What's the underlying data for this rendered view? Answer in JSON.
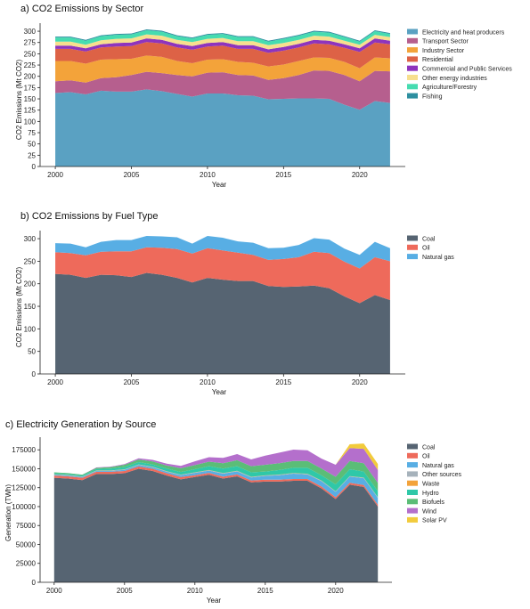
{
  "chart_data": [
    {
      "type": "area",
      "title": "a) CO2 Emissions by Sector",
      "xlabel": "Year",
      "ylabel": "CO2 Emissions (Mt CO2)",
      "xlim": [
        1999,
        2023
      ],
      "ylim": [
        0,
        310
      ],
      "xticks": [
        2000,
        2005,
        2010,
        2015,
        2020
      ],
      "yticks": [
        0,
        25,
        50,
        75,
        100,
        125,
        150,
        175,
        200,
        225,
        250,
        275,
        300
      ],
      "legend_position": "right",
      "x": [
        2000,
        2001,
        2002,
        2003,
        2004,
        2005,
        2006,
        2007,
        2008,
        2009,
        2010,
        2011,
        2012,
        2013,
        2014,
        2015,
        2016,
        2017,
        2018,
        2019,
        2020,
        2021,
        2022
      ],
      "series": [
        {
          "name": "Electricity and heat producers",
          "color": "#5aa1c2",
          "values": [
            163,
            165,
            160,
            168,
            166,
            166,
            171,
            167,
            161,
            155,
            162,
            162,
            158,
            157,
            149,
            150,
            151,
            151,
            150,
            137,
            126,
            145,
            141
          ]
        },
        {
          "name": "Transport Sector",
          "color": "#b65f8e",
          "values": [
            26,
            26,
            26,
            28,
            32,
            37,
            39,
            40,
            42,
            45,
            46,
            47,
            45,
            45,
            43,
            46,
            52,
            62,
            62,
            66,
            63,
            67,
            70
          ]
        },
        {
          "name": "Industry Sector",
          "color": "#f3a33a",
          "values": [
            45,
            43,
            42,
            41,
            40,
            36,
            36,
            36,
            31,
            29,
            29,
            29,
            29,
            28,
            30,
            30,
            31,
            29,
            29,
            29,
            29,
            30,
            29
          ]
        },
        {
          "name": "Residential",
          "color": "#dd6246",
          "values": [
            27,
            27,
            27,
            27,
            28,
            28,
            30,
            30,
            30,
            30,
            29,
            30,
            29,
            31,
            30,
            31,
            30,
            31,
            30,
            31,
            36,
            33,
            31
          ]
        },
        {
          "name": "Commercial and Public Services",
          "color": "#8e34bd",
          "values": [
            7,
            7,
            7,
            7,
            8,
            8,
            8,
            8,
            8,
            8,
            8,
            8,
            8,
            8,
            8,
            8,
            8,
            8,
            8,
            8,
            8,
            9,
            8
          ]
        },
        {
          "name": "Other energy industries",
          "color": "#f7df8e",
          "values": [
            9,
            9,
            8,
            9,
            9,
            9,
            9,
            9,
            9,
            9,
            9,
            9,
            9,
            9,
            9,
            9,
            9,
            9,
            9,
            8,
            8,
            8,
            8
          ]
        },
        {
          "name": "Agriculture/Forestry",
          "color": "#46dcb0",
          "values": [
            9,
            9,
            9,
            9,
            9,
            9,
            9,
            9,
            8,
            8,
            9,
            9,
            9,
            9,
            8,
            9,
            9,
            9,
            9,
            8,
            7,
            8,
            7
          ]
        },
        {
          "name": "Fishing",
          "color": "#2d8fa0",
          "values": [
            2,
            2,
            2,
            2,
            2,
            2,
            2,
            2,
            2,
            2,
            2,
            2,
            2,
            2,
            2,
            2,
            2,
            2,
            2,
            2,
            2,
            2,
            2
          ]
        }
      ]
    },
    {
      "type": "area",
      "title": "b) CO2 Emissions by Fuel Type",
      "xlabel": "Year",
      "ylabel": "CO2 Emissions (Mt CO2)",
      "xlim": [
        1999,
        2023
      ],
      "ylim": [
        0,
        310
      ],
      "xticks": [
        2000,
        2005,
        2010,
        2015,
        2020
      ],
      "yticks": [
        0,
        50,
        100,
        150,
        200,
        250,
        300
      ],
      "legend_position": "right",
      "x": [
        2000,
        2001,
        2002,
        2003,
        2004,
        2005,
        2006,
        2007,
        2008,
        2009,
        2010,
        2011,
        2012,
        2013,
        2014,
        2015,
        2016,
        2017,
        2018,
        2019,
        2020,
        2021,
        2022
      ],
      "series": [
        {
          "name": "Coal",
          "color": "#566472",
          "values": [
            222,
            220,
            213,
            220,
            219,
            215,
            224,
            220,
            213,
            203,
            213,
            209,
            206,
            206,
            195,
            193,
            194,
            196,
            190,
            172,
            157,
            175,
            164
          ]
        },
        {
          "name": "Oil",
          "color": "#ee6a5b",
          "values": [
            48,
            48,
            50,
            51,
            53,
            57,
            57,
            60,
            64,
            64,
            66,
            65,
            63,
            58,
            58,
            62,
            65,
            75,
            78,
            77,
            77,
            84,
            86
          ]
        },
        {
          "name": "Natural gas",
          "color": "#58aee4",
          "values": [
            20,
            21,
            18,
            22,
            25,
            25,
            25,
            25,
            26,
            22,
            27,
            28,
            25,
            27,
            26,
            25,
            27,
            30,
            30,
            29,
            30,
            34,
            29
          ]
        }
      ]
    },
    {
      "type": "area",
      "title": "c) Electricity Generation by Source",
      "xlabel": "Year",
      "ylabel": "Generation (TWh)",
      "xlim": [
        1999,
        2024
      ],
      "ylim": [
        0,
        187000
      ],
      "xticks": [
        2000,
        2005,
        2010,
        2015,
        2020
      ],
      "yticks": [
        0,
        25000,
        50000,
        75000,
        100000,
        125000,
        150000,
        175000
      ],
      "legend_position": "right",
      "x": [
        2000,
        2001,
        2002,
        2003,
        2004,
        2005,
        2006,
        2007,
        2008,
        2009,
        2010,
        2011,
        2012,
        2013,
        2014,
        2015,
        2016,
        2017,
        2018,
        2019,
        2020,
        2021,
        2022,
        2023
      ],
      "series": [
        {
          "name": "Coal",
          "color": "#566472",
          "values": [
            138000,
            137000,
            135000,
            143000,
            143000,
            144000,
            150000,
            147000,
            141000,
            136000,
            139000,
            142000,
            137000,
            140000,
            132000,
            133000,
            133000,
            134000,
            134000,
            124000,
            110000,
            129000,
            126000,
            100000
          ]
        },
        {
          "name": "Oil",
          "color": "#ee6a5b",
          "values": [
            3000,
            3000,
            3000,
            3000,
            3000,
            3000,
            3000,
            3000,
            3000,
            3000,
            2500,
            2500,
            2500,
            2500,
            2500,
            2500,
            2500,
            2500,
            2500,
            2500,
            2500,
            2500,
            2500,
            2500
          ]
        },
        {
          "name": "Natural gas",
          "color": "#58aee4",
          "values": [
            1000,
            1000,
            1000,
            1000,
            1000,
            1500,
            2000,
            2000,
            2000,
            2500,
            3000,
            3000,
            4000,
            4000,
            4000,
            5000,
            6000,
            7000,
            6000,
            7000,
            7000,
            8000,
            9000,
            9000
          ]
        },
        {
          "name": "Other sources",
          "color": "#a6b2bb",
          "values": [
            500,
            500,
            500,
            500,
            500,
            500,
            500,
            500,
            500,
            500,
            500,
            500,
            500,
            500,
            500,
            500,
            500,
            500,
            500,
            500,
            500,
            500,
            500,
            500
          ]
        },
        {
          "name": "Waste",
          "color": "#f3a33a",
          "values": [
            200,
            200,
            200,
            200,
            200,
            200,
            200,
            200,
            200,
            200,
            300,
            300,
            300,
            300,
            300,
            300,
            300,
            300,
            300,
            300,
            300,
            300,
            300,
            300
          ]
        },
        {
          "name": "Hydro",
          "color": "#2fc8a8",
          "values": [
            1500,
            1500,
            1500,
            2000,
            2500,
            3000,
            3000,
            3000,
            3500,
            3500,
            4000,
            5000,
            6000,
            6000,
            6000,
            5000,
            6000,
            7000,
            8000,
            7000,
            9000,
            9000,
            8000,
            8000
          ]
        },
        {
          "name": "Biofuels",
          "color": "#5bbd77",
          "values": [
            1000,
            1000,
            1000,
            1500,
            2000,
            3000,
            3500,
            4000,
            4000,
            5000,
            5500,
            6000,
            7000,
            8000,
            8000,
            9000,
            9000,
            9000,
            9000,
            9000,
            10000,
            11000,
            11000,
            11000
          ]
        },
        {
          "name": "Wind",
          "color": "#b46fcc",
          "values": [
            0,
            0,
            0,
            500,
            500,
            1000,
            1500,
            2000,
            2500,
            3000,
            5000,
            6000,
            7000,
            8000,
            9000,
            12000,
            14000,
            15000,
            14000,
            13000,
            16000,
            17000,
            19000,
            17000
          ]
        },
        {
          "name": "Solar PV",
          "color": "#f2cb3c",
          "values": [
            0,
            0,
            0,
            0,
            0,
            0,
            0,
            0,
            0,
            0,
            0,
            0,
            0,
            0,
            0,
            0,
            0,
            0,
            0,
            0,
            0,
            5000,
            7000,
            8000
          ]
        }
      ]
    }
  ]
}
